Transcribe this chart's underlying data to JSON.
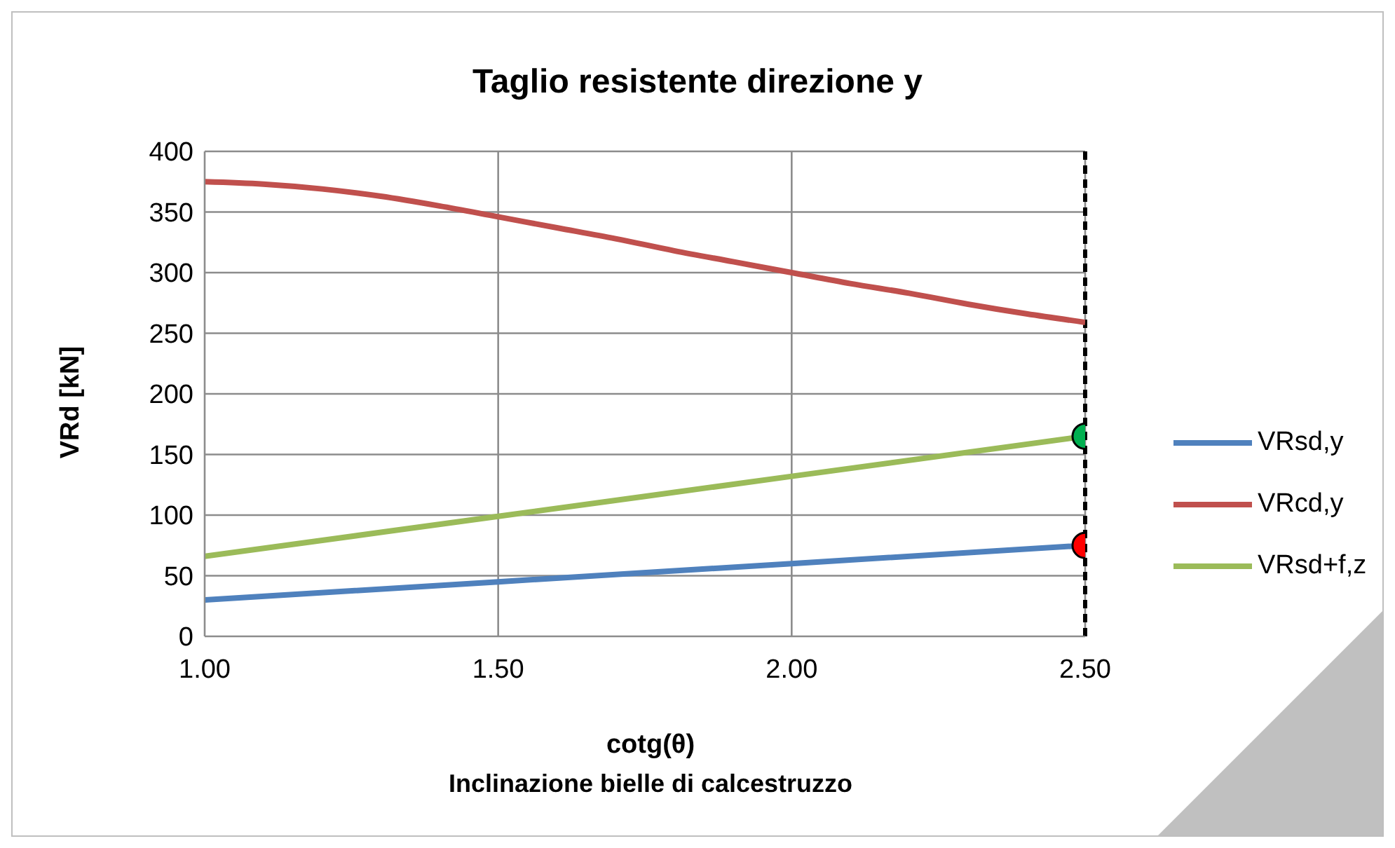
{
  "chart_data": {
    "type": "line",
    "title": "Taglio resistente direzione y",
    "xlabel": "cotg(θ)",
    "ylabel": "VRd [kN]",
    "annotations": [
      "Inclinazione bielle di calcestruzzo"
    ],
    "xlim": [
      1,
      2.5
    ],
    "xticks": [
      {
        "value": 1,
        "label": "1.00"
      },
      {
        "value": 1.5,
        "label": "1.50"
      },
      {
        "value": 2,
        "label": "2.00"
      },
      {
        "value": 2.5,
        "label": "2.50"
      }
    ],
    "ylim": [
      0,
      400
    ],
    "yticks": [
      0,
      50,
      100,
      150,
      200,
      250,
      300,
      350,
      400
    ],
    "grid": true,
    "legend": "right",
    "marker": "none",
    "line_style": "solid",
    "series": [
      {
        "name": "VRsd,y",
        "color": "#4f81bd",
        "x": [
          1,
          1.5,
          2,
          2.5
        ],
        "values": [
          30,
          45,
          60,
          75
        ]
      },
      {
        "name": "VRcd,y",
        "color": "#c0504d",
        "x": [
          1,
          1.1,
          1.2,
          1.3,
          1.4,
          1.5,
          1.6,
          1.7,
          1.8,
          1.9,
          2,
          2.1,
          2.2,
          2.3,
          2.4,
          2.5
        ],
        "values": [
          375,
          373,
          369,
          363,
          355,
          346,
          337,
          328,
          318,
          309,
          300,
          291,
          283,
          274,
          266,
          259
        ]
      },
      {
        "name": "VRsd+f,z",
        "color": "#9bbb59",
        "x": [
          1,
          1.5,
          2,
          2.5
        ],
        "values": [
          66,
          99,
          132,
          165
        ]
      },
      {
        "type": "scatter",
        "color": "#00b050",
        "marker": "circle",
        "x": [
          2.5
        ],
        "values": [
          165
        ]
      },
      {
        "type": "scatter",
        "color": "#ff0000",
        "marker": "circle",
        "x": [
          2.5
        ],
        "values": [
          75
        ]
      }
    ],
    "ref_lines": [
      {
        "axis": "x",
        "value": 2.5,
        "color": "#000000",
        "line_style": "dashed"
      }
    ]
  }
}
